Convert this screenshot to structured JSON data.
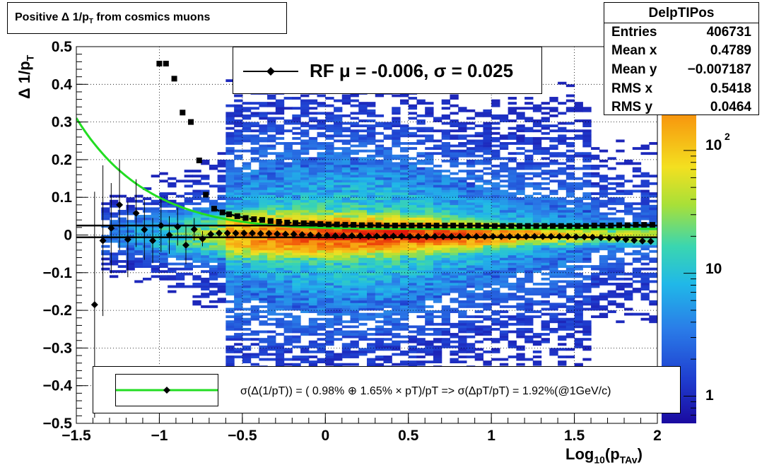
{
  "title": "Positive Δ 1/p",
  "title_sub": "T",
  "title_rest": " from cosmics muons",
  "stats": {
    "name": "DelpTIPos",
    "rows": [
      {
        "label": "Entries",
        "value": "406731"
      },
      {
        "label": "Mean x",
        "value": "0.4789"
      },
      {
        "label": "Mean y",
        "value": "−0.007187"
      },
      {
        "label": "RMS x",
        "value": "0.5418"
      },
      {
        "label": "RMS y",
        "value": "0.0464"
      }
    ]
  },
  "legend_rf": "RF μ = -0.006, σ =   0.025",
  "legend_res": "σ(Δ(1/pT)) = ( 0.98% ⊕  1.65% × pT)/pT => σ(ΔpT/pT) =  1.92%(@1GeV/c)",
  "x_axis": {
    "label_main": "Log",
    "label_sub1": "10",
    "label_mid": "(p",
    "label_sub2": "TAv",
    "label_end": ")"
  },
  "y_axis": {
    "label_main": "Δ 1/p",
    "label_sub": "T"
  },
  "colorbar": {
    "labels": [
      "1",
      "10",
      "10"
    ],
    "sup": "2"
  },
  "chart_data": {
    "type": "heatmap",
    "xlim": [
      -1.5,
      2
    ],
    "ylim": [
      -0.5,
      0.5
    ],
    "log_z": true,
    "zlim": [
      0.6,
      700
    ],
    "grid": true,
    "x_ticks": [
      "−1.5",
      "−1",
      "−0.5",
      "0",
      "0.5",
      "1",
      "1.5",
      "2"
    ],
    "y_ticks": [
      "−0.5",
      "−0.4",
      "−0.3",
      "−0.2",
      "−0.1",
      "0",
      "0.1",
      "0.2",
      "0.3",
      "0.4",
      "0.5"
    ],
    "x_tick_values": [
      -1.5,
      -1,
      -0.5,
      0,
      0.5,
      1,
      1.5,
      2
    ],
    "y_tick_values": [
      -0.5,
      -0.4,
      -0.3,
      -0.2,
      -0.1,
      0,
      0.1,
      0.2,
      0.3,
      0.4,
      0.5
    ],
    "mean_points": {
      "x": [
        -1.39,
        -1.34,
        -1.29,
        -1.24,
        -1.19,
        -1.14,
        -1.09,
        -1.04,
        -0.99,
        -0.94,
        -0.89,
        -0.84,
        -0.79,
        -0.74,
        -0.69,
        -0.64,
        -0.59,
        -0.54,
        -0.49,
        -0.44,
        -0.39,
        -0.34,
        -0.29,
        -0.24,
        -0.19,
        -0.14,
        -0.09,
        -0.04,
        0.01,
        0.06,
        0.11,
        0.16,
        0.21,
        0.26,
        0.31,
        0.36,
        0.41,
        0.46,
        0.51,
        0.56,
        0.61,
        0.66,
        0.71,
        0.76,
        0.81,
        0.86,
        0.91,
        0.96,
        1.01,
        1.06,
        1.11,
        1.16,
        1.21,
        1.26,
        1.31,
        1.36,
        1.41,
        1.46,
        1.51,
        1.56,
        1.61,
        1.66,
        1.71,
        1.76,
        1.81,
        1.86,
        1.91,
        1.96
      ],
      "y": [
        -0.185,
        -0.015,
        0.018,
        0.08,
        -0.012,
        0.058,
        0.014,
        -0.015,
        0.025,
        0.0,
        0.022,
        -0.027,
        0.015,
        -0.01,
        0.002,
        0.005,
        0.005,
        0.005,
        0.005,
        0.005,
        0.004,
        0.004,
        0.003,
        0.002,
        0.002,
        0.001,
        0.0,
        -0.001,
        -0.001,
        -0.002,
        -0.002,
        -0.002,
        -0.002,
        -0.003,
        -0.003,
        -0.003,
        -0.003,
        -0.003,
        -0.004,
        -0.004,
        -0.004,
        -0.004,
        -0.004,
        -0.004,
        -0.004,
        -0.004,
        -0.004,
        -0.004,
        -0.004,
        -0.004,
        -0.004,
        -0.004,
        -0.004,
        -0.004,
        -0.004,
        -0.004,
        -0.004,
        -0.004,
        -0.005,
        -0.005,
        -0.006,
        -0.007,
        -0.008,
        -0.01,
        -0.012,
        -0.014,
        -0.016,
        -0.017
      ],
      "yerr": [
        0.3,
        0.2,
        0.12,
        0.12,
        0.1,
        0.09,
        0.08,
        0.06,
        0.07,
        0.05,
        0.05,
        0.05,
        0.03,
        0.02,
        0.01,
        0.005
      ]
    },
    "sigma_points": {
      "x": [
        -1.0,
        -0.96,
        -0.91,
        -0.86,
        -0.81,
        -0.76,
        -0.72,
        -0.67,
        -0.62,
        -0.58,
        -0.53,
        -0.48,
        -0.43,
        -0.38,
        -0.33,
        -0.28,
        -0.23,
        -0.18,
        -0.13,
        -0.08,
        -0.03,
        0.02,
        0.07,
        0.12,
        0.17,
        0.22,
        0.27,
        0.32,
        0.37,
        0.42,
        0.47,
        0.52,
        0.57,
        0.62,
        0.67,
        0.72,
        0.77,
        0.82,
        0.87,
        0.92,
        0.97,
        1.02,
        1.07,
        1.12,
        1.17,
        1.22,
        1.27,
        1.32,
        1.37,
        1.42,
        1.47,
        1.52,
        1.57,
        1.62,
        1.67,
        1.72,
        1.77,
        1.82,
        1.87,
        1.92,
        1.97
      ],
      "y": [
        0.455,
        0.455,
        0.415,
        0.325,
        0.3,
        0.198,
        0.107,
        0.07,
        0.06,
        0.055,
        0.05,
        0.045,
        0.042,
        0.04,
        0.037,
        0.035,
        0.033,
        0.032,
        0.031,
        0.03,
        0.029,
        0.028,
        0.028,
        0.027,
        0.027,
        0.026,
        0.026,
        0.026,
        0.025,
        0.025,
        0.025,
        0.025,
        0.025,
        0.025,
        0.025,
        0.025,
        0.025,
        0.025,
        0.025,
        0.025,
        0.024,
        0.024,
        0.024,
        0.024,
        0.024,
        0.024,
        0.024,
        0.024,
        0.024,
        0.024,
        0.024,
        0.024,
        0.024,
        0.025,
        0.025,
        0.025,
        0.026,
        0.026,
        0.027,
        0.027,
        0.027
      ]
    },
    "resolution_fit": {
      "a_percent": 0.98,
      "b_percent": 1.65,
      "color": "#22dd22"
    },
    "mean_fit": {
      "value": -0.006,
      "sigma": 0.025,
      "color": "#000000"
    }
  }
}
